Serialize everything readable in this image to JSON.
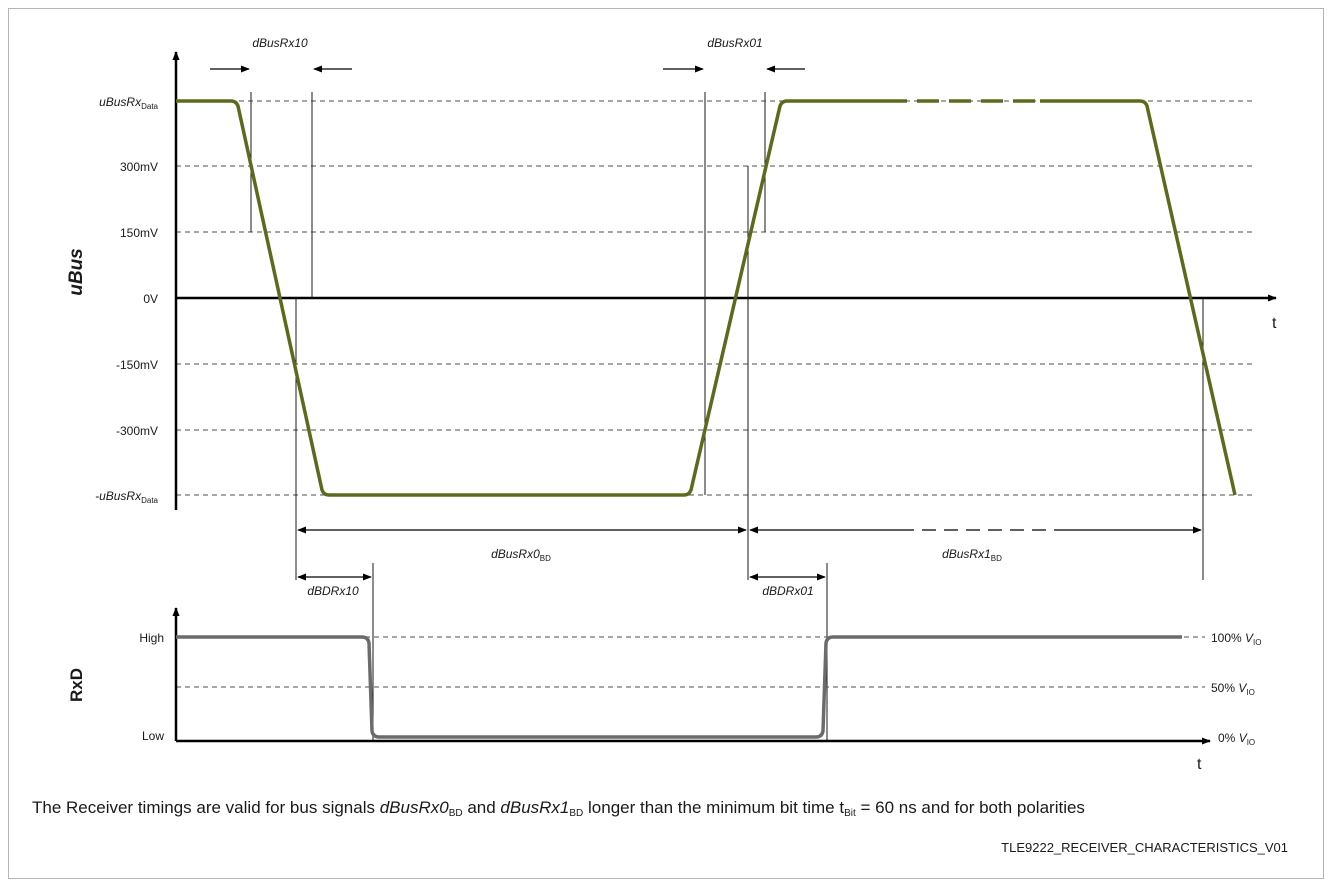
{
  "axes": {
    "ubus_ylabel": "uBus",
    "rxd_ylabel": "RxD",
    "t_label_top": "t",
    "t_label_bottom": "t"
  },
  "ubus_levels": {
    "data_pos": {
      "main": "uBusRx",
      "sub": "Data"
    },
    "mv300": "300mV",
    "mv150": "150mV",
    "zero": "0V",
    "mvneg150": "-150mV",
    "mvneg300": "-300mV",
    "data_neg": {
      "main": "-uBusRx",
      "sub": "Data"
    }
  },
  "rxd_levels": {
    "high": "High",
    "low": "Low",
    "right100": {
      "pre": "100% ",
      "v": "V",
      "sub": "IO"
    },
    "right50": {
      "pre": "50% ",
      "v": "V",
      "sub": "IO"
    },
    "right0": {
      "pre": "0% ",
      "v": "V",
      "sub": "IO"
    }
  },
  "timings": {
    "dBusRx10": "dBusRx10",
    "dBusRx01": "dBusRx01",
    "dBusRx0": {
      "main": "dBusRx0",
      "sub": "BD"
    },
    "dBusRx1": {
      "main": "dBusRx1",
      "sub": "BD"
    },
    "dBDRx10": "dBDRx10",
    "dBDRx01": "dBDRx01"
  },
  "colors": {
    "bus_signal": "#5a6b1e",
    "rxd_signal": "#6b6b6b",
    "axis": "#000000",
    "grid": "#4d4d4d"
  },
  "caption": {
    "part1": "The Receiver timings are valid for bus signals ",
    "sig0": "dBusRx0",
    "sig0_sub": "BD",
    "part2": " and ",
    "sig1": "dBusRx1",
    "sig1_sub": "BD",
    "part3": " longer than the minimum bit time t",
    "tbit_sub": "Bit",
    "part4": " = 60 ns and for both polarities"
  },
  "figure_id": "TLE9222_RECEIVER_CHARACTERISTICS_V01"
}
